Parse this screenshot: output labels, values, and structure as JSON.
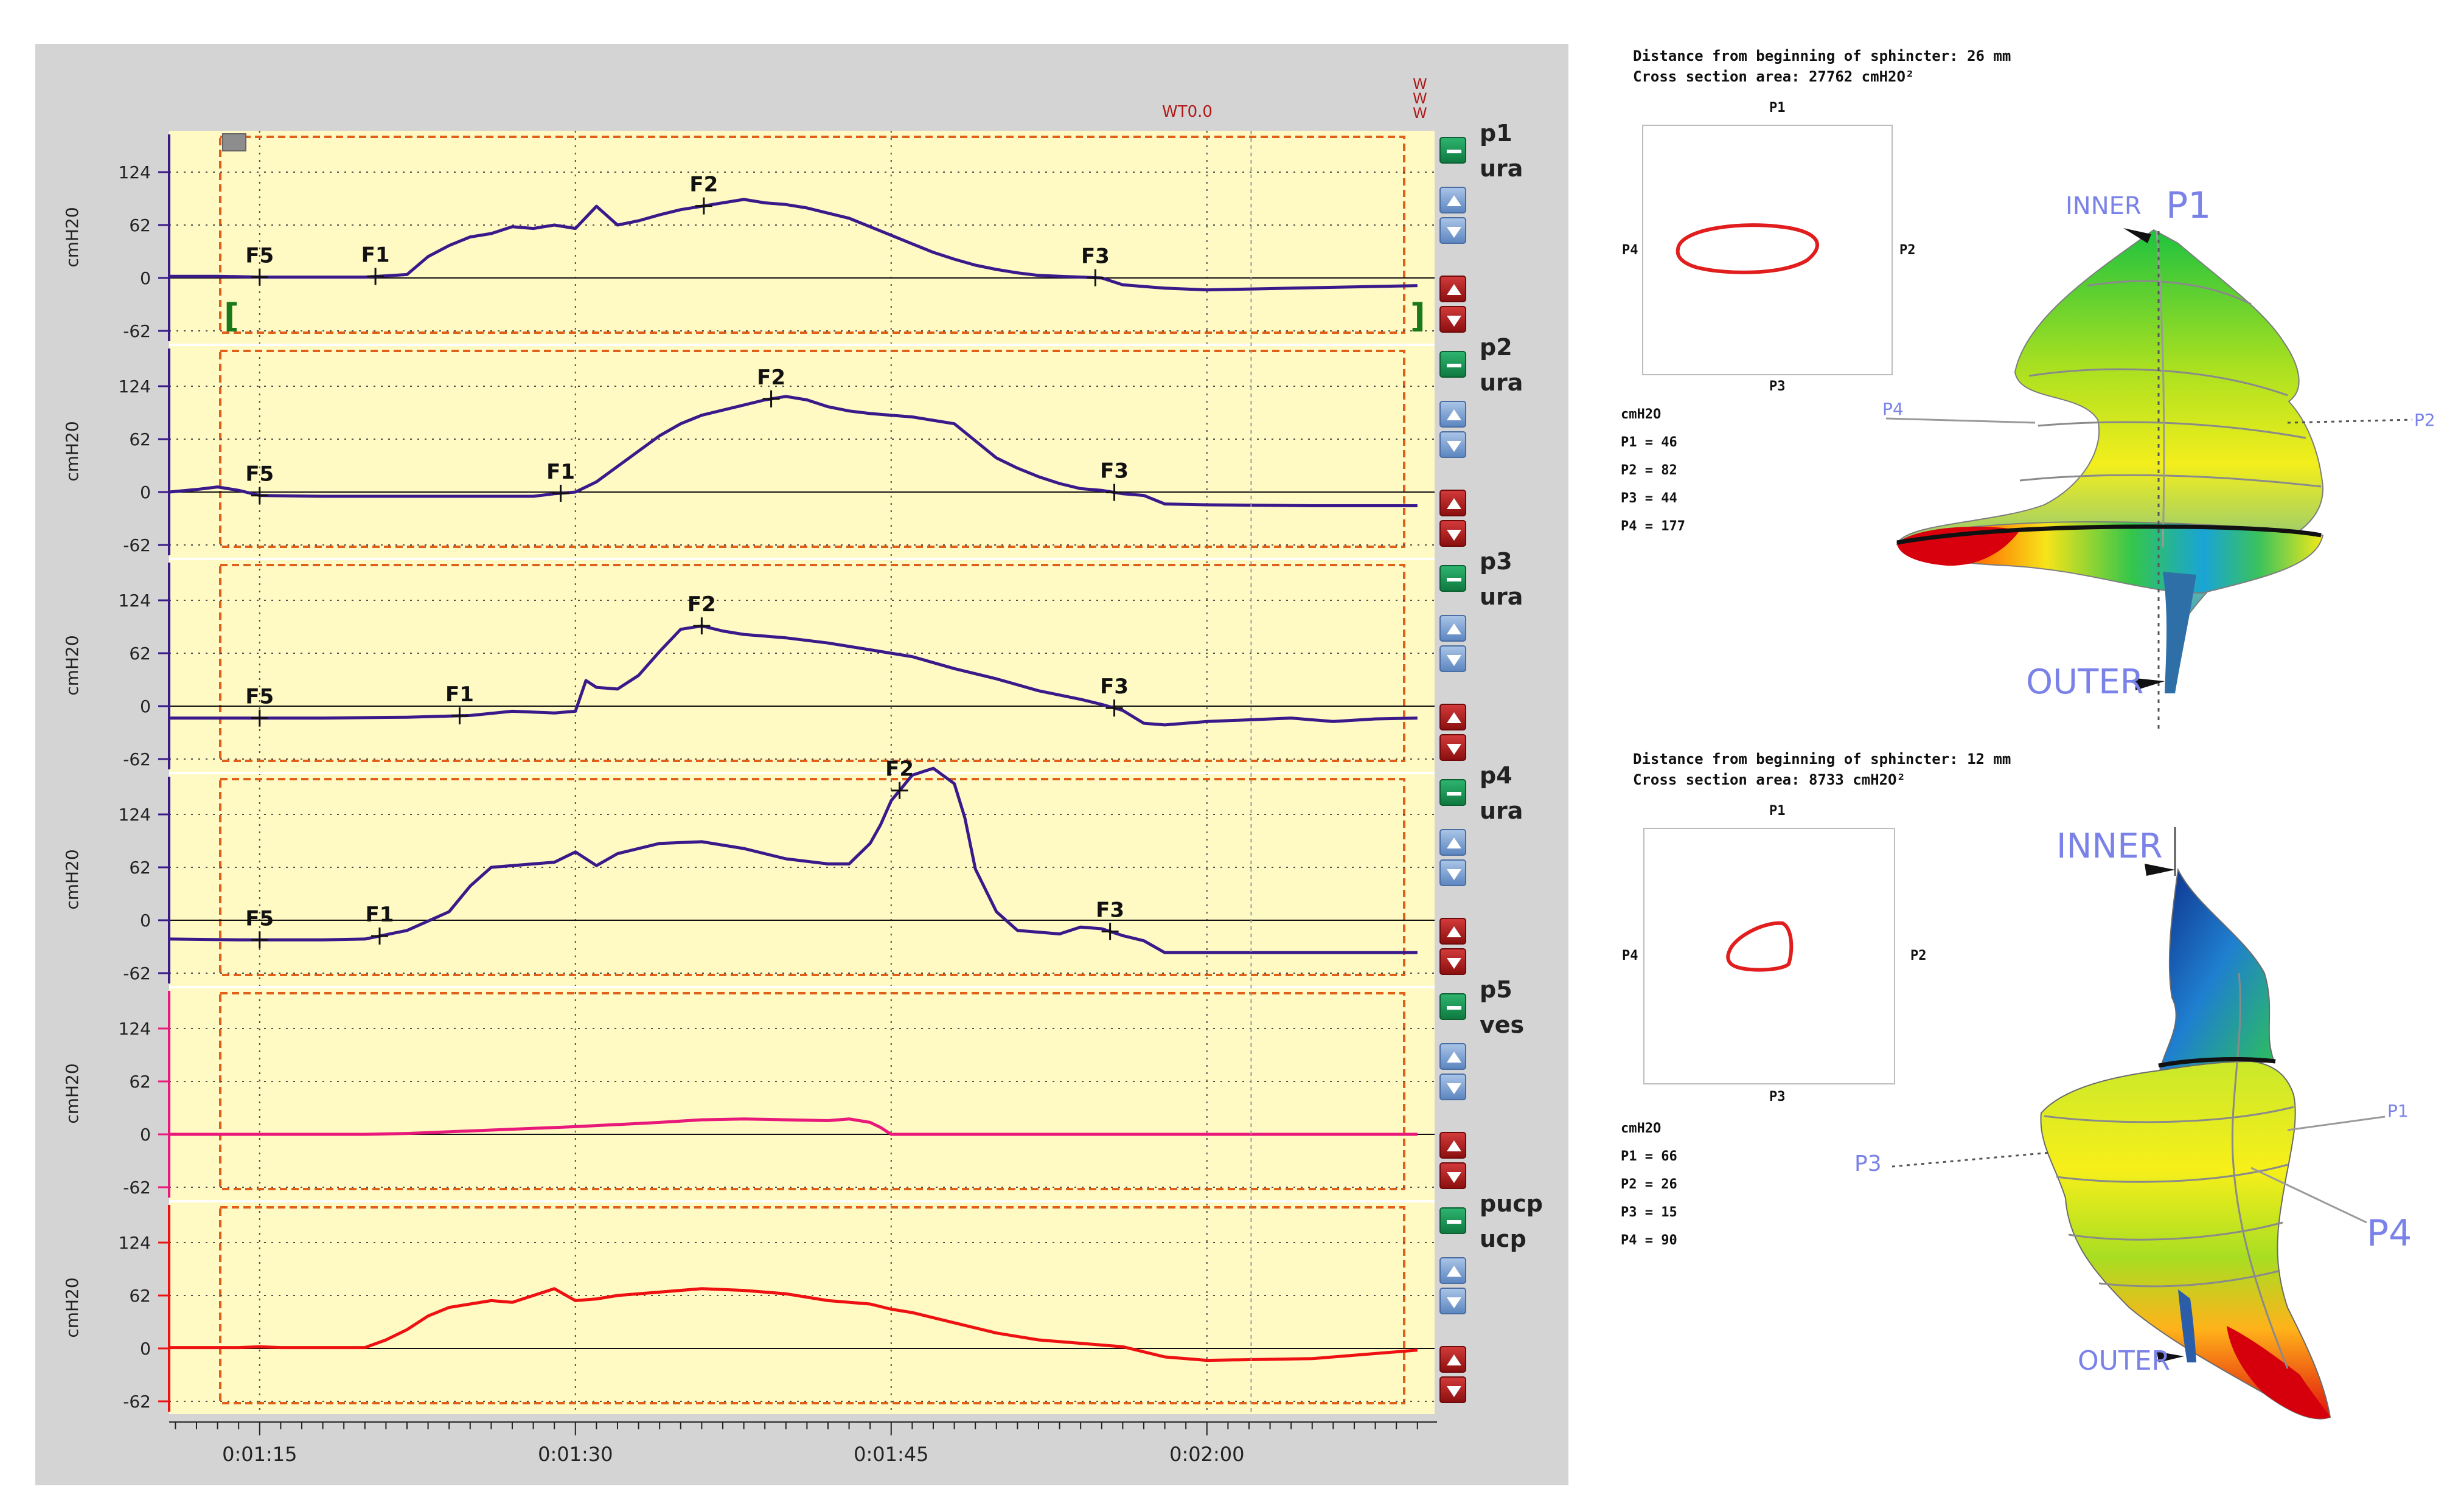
{
  "chart_data": {
    "type": "line",
    "y_unit_label": "cmH20",
    "y_ticks": [
      124,
      62,
      0,
      -62
    ],
    "x_tick_labels": [
      "0:01:15",
      "0:01:30",
      "0:01:45",
      "0:02:00"
    ],
    "x_tick_seconds": [
      75,
      90,
      105,
      120
    ],
    "x_range_seconds": [
      70.7,
      130
    ],
    "marker_label": "WT0.0",
    "marker_time": 122.1,
    "marker_letters": [
      "W",
      "W",
      "W"
    ],
    "channels": [
      {
        "name": "p1",
        "sub": "ura",
        "color": "#3a1a8a",
        "axis_color": "#3a1a8a",
        "x": [
          70.7,
          73,
          75,
          76,
          78,
          80,
          82,
          83,
          84,
          85,
          86,
          87,
          88,
          89,
          90,
          91,
          92,
          93,
          94,
          95,
          96,
          97,
          98,
          99,
          100,
          101,
          102,
          103,
          104,
          105,
          106,
          107,
          108,
          109,
          110,
          111,
          112,
          113,
          114,
          115,
          116,
          118,
          120,
          122,
          124,
          126,
          128,
          130
        ],
        "y": [
          2,
          2,
          1,
          1,
          1,
          1,
          4,
          25,
          38,
          48,
          52,
          60,
          58,
          62,
          58,
          84,
          62,
          67,
          74,
          80,
          84,
          88,
          92,
          88,
          86,
          82,
          76,
          70,
          60,
          50,
          40,
          30,
          22,
          15,
          10,
          6,
          3,
          2,
          1,
          0,
          -8,
          -12,
          -14,
          -13,
          -12,
          -11,
          -10,
          -9
        ],
        "flags": [
          {
            "label": "F5",
            "t": 75.0
          },
          {
            "label": "F1",
            "t": 80.5
          },
          {
            "label": "F2",
            "t": 96.1
          },
          {
            "label": "F3",
            "t": 114.7
          }
        ]
      },
      {
        "name": "p2",
        "sub": "ura",
        "color": "#3a1a8a",
        "axis_color": "#3a1a8a",
        "x": [
          70.7,
          72,
          73,
          74,
          75,
          78,
          80,
          82,
          84,
          86,
          88,
          89,
          90,
          91,
          92,
          93,
          94,
          95,
          96,
          97,
          98,
          99,
          100,
          101,
          102,
          103,
          104,
          105,
          106,
          107,
          108,
          109,
          110,
          111,
          112,
          113,
          114,
          115,
          116,
          117,
          118,
          120,
          125,
          130
        ],
        "y": [
          0,
          3,
          6,
          2,
          -4,
          -5,
          -5,
          -5,
          -5,
          -5,
          -5,
          -2,
          0,
          12,
          30,
          48,
          66,
          80,
          90,
          96,
          102,
          108,
          112,
          108,
          100,
          95,
          92,
          90,
          88,
          84,
          80,
          60,
          40,
          28,
          18,
          10,
          4,
          2,
          -2,
          -4,
          -14,
          -15,
          -16,
          -16
        ],
        "flags": [
          {
            "label": "F5",
            "t": 75.0
          },
          {
            "label": "F1",
            "t": 89.3
          },
          {
            "label": "F2",
            "t": 99.3
          },
          {
            "label": "F3",
            "t": 115.6
          }
        ]
      },
      {
        "name": "p3",
        "sub": "ura",
        "color": "#3a1a8a",
        "axis_color": "#3a1a8a",
        "x": [
          70.7,
          74,
          78,
          82,
          85,
          87,
          89,
          90,
          90.5,
          91,
          92,
          93,
          94,
          95,
          96,
          97,
          98,
          99,
          100,
          102,
          104,
          106,
          108,
          110,
          112,
          114,
          115,
          116,
          117,
          118,
          120,
          124,
          126,
          128,
          130
        ],
        "y": [
          -14,
          -14,
          -14,
          -13,
          -11,
          -6,
          -8,
          -6,
          30,
          22,
          20,
          36,
          64,
          90,
          94,
          88,
          84,
          82,
          80,
          74,
          66,
          58,
          44,
          32,
          18,
          8,
          2,
          -5,
          -20,
          -22,
          -18,
          -14,
          -18,
          -15,
          -14
        ],
        "flags": [
          {
            "label": "F5",
            "t": 75.0
          },
          {
            "label": "F1",
            "t": 84.5
          },
          {
            "label": "F2",
            "t": 96.0
          },
          {
            "label": "F3",
            "t": 115.6
          }
        ]
      },
      {
        "name": "p4",
        "sub": "ura",
        "color": "#3a1a8a",
        "axis_color": "#3a1a8a",
        "x": [
          70.7,
          74,
          78,
          80,
          82,
          84,
          85,
          86,
          88,
          89,
          90,
          91,
          92,
          94,
          96,
          98,
          100,
          102,
          103,
          104,
          104.5,
          105,
          106,
          107,
          108,
          108.5,
          109,
          110,
          111,
          112,
          113,
          114,
          115,
          116,
          117,
          118,
          120,
          125,
          130
        ],
        "y": [
          -22,
          -23,
          -23,
          -22,
          -12,
          10,
          40,
          62,
          66,
          68,
          80,
          64,
          78,
          90,
          92,
          84,
          72,
          66,
          66,
          90,
          112,
          140,
          170,
          178,
          160,
          120,
          60,
          10,
          -12,
          -14,
          -16,
          -8,
          -10,
          -18,
          -24,
          -38,
          -38,
          -38,
          -38
        ],
        "flags": [
          {
            "label": "F5",
            "t": 75.0
          },
          {
            "label": "F1",
            "t": 80.7
          },
          {
            "label": "F2",
            "t": 105.4
          },
          {
            "label": "F3",
            "t": 115.4
          }
        ]
      },
      {
        "name": "p5",
        "sub": "ves",
        "color": "#e8197a",
        "axis_color": "#e8197a",
        "x": [
          70.7,
          76,
          80,
          82,
          86,
          90,
          94,
          96,
          98,
          100,
          102,
          103,
          104,
          104.5,
          105,
          110,
          120,
          130
        ],
        "y": [
          0,
          0,
          0,
          1,
          5,
          9,
          14,
          17,
          18,
          17,
          16,
          18,
          14,
          8,
          0,
          0,
          0,
          0
        ],
        "flags": []
      },
      {
        "name": "pucp",
        "sub": "ucp",
        "color": "#ee1111",
        "axis_color": "#ee1111",
        "x": [
          70.7,
          74,
          75,
          76,
          78,
          80,
          81,
          82,
          83,
          84,
          85,
          86,
          87,
          88,
          89,
          90,
          91,
          92,
          94,
          96,
          98,
          100,
          102,
          104,
          105,
          106,
          108,
          110,
          112,
          114,
          116,
          118,
          120,
          125,
          130
        ],
        "y": [
          1,
          1,
          2,
          1,
          1,
          1,
          10,
          22,
          38,
          48,
          52,
          56,
          54,
          62,
          70,
          56,
          58,
          62,
          66,
          70,
          68,
          64,
          56,
          52,
          46,
          42,
          30,
          18,
          10,
          6,
          2,
          -10,
          -14,
          -12,
          -2
        ],
        "flags": []
      }
    ]
  },
  "info_top": {
    "distance": "Distance from beginning of sphincter: 26 mm",
    "area": "Cross section area: 27762 cmH2O²",
    "box_top": "P1",
    "box_left": "P4",
    "box_right": "P2",
    "box_bottom": "P3",
    "unit": "cmH2O",
    "readings": [
      "P1 = 46",
      "P2 = 82",
      "P3 = 44",
      "P4 = 177"
    ]
  },
  "model_top": {
    "inner": "INNER",
    "outer": "OUTER",
    "p1": "P1",
    "p2": "P2",
    "p4": "P4"
  },
  "info_bottom": {
    "distance": "Distance from beginning of sphincter: 12 mm",
    "area": "Cross section area: 8733 cmH2O²",
    "box_top": "P1",
    "box_left": "P4",
    "box_right": "P2",
    "box_bottom": "P3",
    "unit": "cmH2O",
    "readings": [
      "P1 = 66",
      "P2 = 26",
      "P3 = 15",
      "P4 = 90"
    ]
  },
  "model_bottom": {
    "inner": "INNER",
    "outer": "OUTER",
    "p1": "P1",
    "p3": "P3",
    "p4": "P4"
  }
}
